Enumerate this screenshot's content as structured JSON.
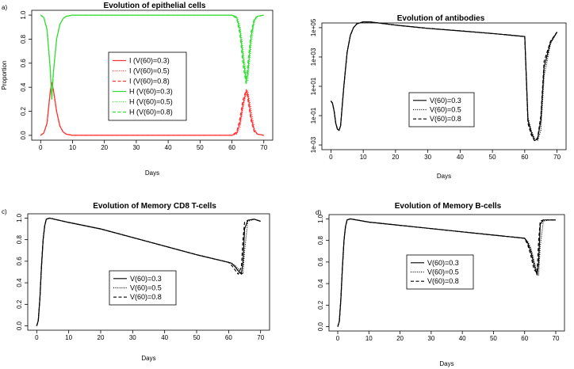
{
  "chart_data": [
    {
      "panel": "a)",
      "type": "line",
      "title": "Evolution of epithelial cells",
      "xlabel": "Days",
      "ylabel": "Proportion",
      "xlim": [
        0,
        70
      ],
      "ylim": [
        0,
        1
      ],
      "xticks": [
        0,
        10,
        20,
        30,
        40,
        50,
        60,
        70
      ],
      "yticks": [
        "0.0",
        "0.2",
        "0.4",
        "0.6",
        "0.8",
        "1.0"
      ],
      "legend_position": "center",
      "series": [
        {
          "name": "I (V(60)=0.3)",
          "color": "#ff3333",
          "dash": "solid",
          "x": [
            0,
            1,
            2,
            3,
            3.5,
            4,
            5,
            6,
            7,
            8,
            10,
            20,
            40,
            60,
            61.5,
            62.5,
            63.5,
            64.5,
            65,
            66,
            67,
            68,
            70
          ],
          "y": [
            0,
            0.02,
            0.1,
            0.36,
            0.44,
            0.38,
            0.2,
            0.08,
            0.03,
            0.01,
            0,
            0,
            0,
            0,
            0.02,
            0.1,
            0.26,
            0.37,
            0.34,
            0.15,
            0.04,
            0.01,
            0
          ]
        },
        {
          "name": "I (V(60)=0.5)",
          "color": "#ff3333",
          "dash": "dotted",
          "x": [
            0,
            1,
            2,
            3,
            3.5,
            4,
            5,
            6,
            7,
            8,
            10,
            20,
            40,
            60,
            61.5,
            62.5,
            63.5,
            64.5,
            65,
            66,
            67,
            68,
            70
          ],
          "y": [
            0,
            0.02,
            0.1,
            0.36,
            0.44,
            0.38,
            0.2,
            0.08,
            0.03,
            0.01,
            0,
            0,
            0,
            0,
            0.01,
            0.06,
            0.22,
            0.36,
            0.37,
            0.22,
            0.06,
            0.01,
            0
          ]
        },
        {
          "name": "I (V(60)=0.8)",
          "color": "#ff3333",
          "dash": "dashed",
          "x": [
            0,
            1,
            2,
            3,
            3.5,
            4,
            5,
            6,
            7,
            8,
            10,
            20,
            40,
            60,
            61.5,
            62.5,
            63.5,
            64.5,
            65,
            66,
            67,
            68,
            70
          ],
          "y": [
            0,
            0.02,
            0.1,
            0.36,
            0.44,
            0.38,
            0.2,
            0.08,
            0.03,
            0.01,
            0,
            0,
            0,
            0,
            0.03,
            0.14,
            0.3,
            0.38,
            0.3,
            0.12,
            0.03,
            0.01,
            0
          ]
        },
        {
          "name": "H (V(60)=0.3)",
          "color": "#33dd33",
          "dash": "solid",
          "x": [
            0,
            1,
            2,
            3,
            3.5,
            4,
            5,
            6,
            7,
            8,
            10,
            20,
            40,
            60,
            61.5,
            62.5,
            63.5,
            64.5,
            65,
            66,
            67,
            68,
            70
          ],
          "y": [
            1,
            0.98,
            0.88,
            0.56,
            0.3,
            0.52,
            0.8,
            0.92,
            0.97,
            0.99,
            1,
            1,
            1,
            1,
            0.98,
            0.88,
            0.65,
            0.45,
            0.52,
            0.82,
            0.96,
            0.99,
            1
          ]
        },
        {
          "name": "H (V(60)=0.5)",
          "color": "#33dd33",
          "dash": "dotted",
          "x": [
            0,
            1,
            2,
            3,
            3.5,
            4,
            5,
            6,
            7,
            8,
            10,
            20,
            40,
            60,
            61.5,
            62.5,
            63.5,
            64.5,
            65,
            66,
            67,
            68,
            70
          ],
          "y": [
            1,
            0.98,
            0.88,
            0.56,
            0.3,
            0.52,
            0.8,
            0.92,
            0.97,
            0.99,
            1,
            1,
            1,
            1,
            0.99,
            0.92,
            0.72,
            0.5,
            0.45,
            0.74,
            0.94,
            0.99,
            1
          ]
        },
        {
          "name": "H (V(60)=0.8)",
          "color": "#33dd33",
          "dash": "dashed",
          "x": [
            0,
            1,
            2,
            3,
            3.5,
            4,
            5,
            6,
            7,
            8,
            10,
            20,
            40,
            60,
            61.5,
            62.5,
            63.5,
            64.5,
            65,
            66,
            67,
            68,
            70
          ],
          "y": [
            1,
            0.98,
            0.88,
            0.56,
            0.3,
            0.52,
            0.8,
            0.92,
            0.97,
            0.99,
            1,
            1,
            1,
            1,
            0.97,
            0.84,
            0.58,
            0.42,
            0.6,
            0.86,
            0.97,
            0.99,
            1
          ]
        }
      ]
    },
    {
      "panel": "",
      "type": "line",
      "title": "Evolution of antibodies",
      "xlabel": "Days",
      "ylabel": "",
      "log_y": true,
      "xlim": [
        0,
        70
      ],
      "ylim": [
        0.001,
        100000
      ],
      "xticks": [
        0,
        10,
        20,
        30,
        40,
        50,
        60,
        70
      ],
      "yticks": [
        "1e-03",
        "1e-01",
        "1e+01",
        "1e+03",
        "1e+05"
      ],
      "ytick_values": [
        0.001,
        0.1,
        10,
        1000,
        100000
      ],
      "legend_position": "bottom-right",
      "series": [
        {
          "name": "V(60)=0.3",
          "color": "#000000",
          "dash": "solid",
          "x": [
            0,
            0.5,
            1,
            1.5,
            2,
            2.5,
            3,
            4,
            5,
            6,
            7,
            8,
            10,
            12,
            20,
            30,
            40,
            50,
            60,
            61,
            62,
            63,
            64,
            65,
            66,
            68,
            70
          ],
          "y": [
            1,
            0.7,
            0.2,
            0.03,
            0.012,
            0.01,
            0.02,
            10,
            2000,
            30000,
            100000,
            180000,
            250000,
            250000,
            150000,
            90000,
            60000,
            40000,
            25000,
            0.05,
            0.008,
            0.002,
            0.0025,
            0.05,
            200,
            10000,
            50000
          ]
        },
        {
          "name": "V(60)=0.5",
          "color": "#000000",
          "dash": "dotted",
          "x": [
            0,
            0.5,
            1,
            1.5,
            2,
            2.5,
            3,
            4,
            5,
            6,
            7,
            8,
            10,
            12,
            20,
            30,
            40,
            50,
            60,
            61,
            62,
            63,
            64,
            65,
            66,
            68,
            70
          ],
          "y": [
            1,
            0.7,
            0.2,
            0.03,
            0.012,
            0.01,
            0.02,
            10,
            2000,
            30000,
            100000,
            180000,
            250000,
            250000,
            150000,
            90000,
            60000,
            40000,
            25000,
            0.08,
            0.01,
            0.003,
            0.002,
            0.01,
            50,
            8000,
            50000
          ]
        },
        {
          "name": "V(60)=0.8",
          "color": "#000000",
          "dash": "dashed",
          "x": [
            0,
            0.5,
            1,
            1.5,
            2,
            2.5,
            3,
            4,
            5,
            6,
            7,
            8,
            10,
            12,
            20,
            30,
            40,
            50,
            60,
            61,
            62,
            63,
            64,
            65,
            66,
            68,
            70
          ],
          "y": [
            1,
            0.7,
            0.2,
            0.03,
            0.012,
            0.01,
            0.02,
            10,
            2000,
            30000,
            100000,
            180000,
            250000,
            250000,
            150000,
            90000,
            60000,
            40000,
            25000,
            0.03,
            0.005,
            0.002,
            0.003,
            0.1,
            500,
            12000,
            50000
          ]
        }
      ]
    },
    {
      "panel": "c)",
      "type": "line",
      "title": "Evolution of Memory CD8 T-cells",
      "xlabel": "Days",
      "ylabel": "",
      "xlim": [
        0,
        70
      ],
      "ylim": [
        0,
        1
      ],
      "xticks": [
        0,
        10,
        20,
        30,
        40,
        50,
        60,
        70
      ],
      "yticks": [
        "0.0",
        "0.2",
        "0.4",
        "0.6",
        "0.8",
        "1.0"
      ],
      "legend_position": "bottom-center",
      "series": [
        {
          "name": "V(60)=0.3",
          "color": "#000000",
          "dash": "solid",
          "x": [
            0,
            0.5,
            1,
            1.5,
            2,
            2.5,
            3,
            4,
            10,
            20,
            30,
            40,
            50,
            60,
            61,
            62,
            63,
            64,
            64.5,
            65,
            66,
            68,
            70
          ],
          "y": [
            0,
            0.05,
            0.25,
            0.55,
            0.8,
            0.93,
            0.99,
            1,
            0.96,
            0.9,
            0.82,
            0.74,
            0.66,
            0.59,
            0.58,
            0.55,
            0.51,
            0.48,
            0.6,
            0.9,
            0.98,
            0.99,
            0.97
          ]
        },
        {
          "name": "V(60)=0.5",
          "color": "#000000",
          "dash": "dotted",
          "x": [
            0,
            0.5,
            1,
            1.5,
            2,
            2.5,
            3,
            4,
            10,
            20,
            30,
            40,
            50,
            60,
            61,
            62,
            63,
            64,
            64.5,
            65,
            66,
            68,
            70
          ],
          "y": [
            0,
            0.05,
            0.25,
            0.55,
            0.8,
            0.93,
            0.99,
            1,
            0.96,
            0.9,
            0.82,
            0.74,
            0.66,
            0.59,
            0.58,
            0.56,
            0.53,
            0.49,
            0.48,
            0.7,
            0.97,
            0.99,
            0.97
          ]
        },
        {
          "name": "V(60)=0.8",
          "color": "#000000",
          "dash": "dashed",
          "x": [
            0,
            0.5,
            1,
            1.5,
            2,
            2.5,
            3,
            4,
            10,
            20,
            30,
            40,
            50,
            60,
            61,
            62,
            63,
            64,
            64.5,
            65,
            66,
            68,
            70
          ],
          "y": [
            0,
            0.05,
            0.25,
            0.55,
            0.8,
            0.93,
            0.99,
            1,
            0.96,
            0.9,
            0.82,
            0.74,
            0.66,
            0.59,
            0.56,
            0.52,
            0.48,
            0.55,
            0.8,
            0.96,
            0.98,
            0.99,
            0.97
          ]
        }
      ]
    },
    {
      "panel": "d)",
      "type": "line",
      "title": "Evolution of Memory B-cells",
      "xlabel": "Days",
      "ylabel": "",
      "xlim": [
        0,
        70
      ],
      "ylim": [
        0,
        1
      ],
      "xticks": [
        0,
        10,
        20,
        30,
        40,
        50,
        60,
        70
      ],
      "yticks": [
        "0.0",
        "0.2",
        "0.4",
        "0.6",
        "0.8",
        "1.0"
      ],
      "legend_position": "center-left",
      "series": [
        {
          "name": "V(60)=0.3",
          "color": "#000000",
          "dash": "solid",
          "x": [
            0,
            0.5,
            1,
            1.5,
            2,
            2.5,
            3,
            4,
            10,
            20,
            30,
            40,
            50,
            60,
            61,
            62,
            63,
            64,
            64.5,
            65,
            66,
            68,
            70
          ],
          "y": [
            0,
            0.05,
            0.25,
            0.55,
            0.8,
            0.93,
            0.99,
            1,
            0.97,
            0.94,
            0.91,
            0.88,
            0.85,
            0.82,
            0.78,
            0.7,
            0.58,
            0.48,
            0.6,
            0.95,
            0.99,
            0.99,
            0.99
          ]
        },
        {
          "name": "V(60)=0.5",
          "color": "#000000",
          "dash": "dotted",
          "x": [
            0,
            0.5,
            1,
            1.5,
            2,
            2.5,
            3,
            4,
            10,
            20,
            30,
            40,
            50,
            60,
            61,
            62,
            63,
            64,
            64.5,
            65,
            66,
            68,
            70
          ],
          "y": [
            0,
            0.05,
            0.25,
            0.55,
            0.8,
            0.93,
            0.99,
            1,
            0.97,
            0.94,
            0.91,
            0.88,
            0.85,
            0.82,
            0.79,
            0.73,
            0.62,
            0.5,
            0.48,
            0.75,
            0.98,
            0.99,
            0.99
          ]
        },
        {
          "name": "V(60)=0.8",
          "color": "#000000",
          "dash": "dashed",
          "x": [
            0,
            0.5,
            1,
            1.5,
            2,
            2.5,
            3,
            4,
            10,
            20,
            30,
            40,
            50,
            60,
            61,
            62,
            63,
            64,
            64.5,
            65,
            66,
            68,
            70
          ],
          "y": [
            0,
            0.05,
            0.25,
            0.55,
            0.8,
            0.93,
            0.99,
            1,
            0.97,
            0.94,
            0.91,
            0.88,
            0.85,
            0.82,
            0.76,
            0.66,
            0.53,
            0.5,
            0.8,
            0.98,
            0.99,
            0.99,
            0.99
          ]
        }
      ]
    }
  ]
}
